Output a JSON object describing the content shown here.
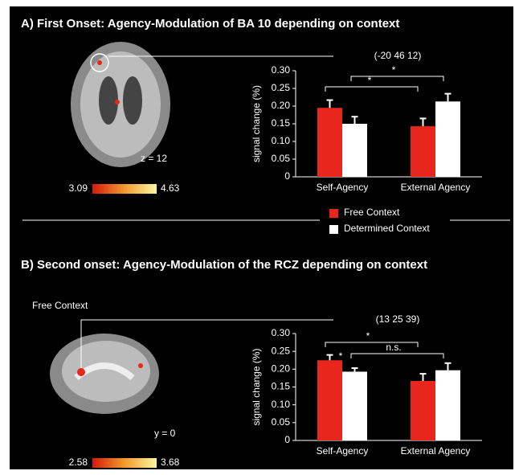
{
  "chart_data": [
    {
      "type": "bar",
      "title": "A)  First Onset: Agency-Modulation of BA 10 depending on context",
      "subtitle": "(-20 46 12)",
      "ylabel": "signal change (%)",
      "categories": [
        "Self-Agency",
        "External Agency"
      ],
      "series": [
        {
          "name": "Free Context",
          "color": "#e8261d",
          "values": [
            0.195,
            0.143
          ],
          "errors": [
            0.022,
            0.022
          ]
        },
        {
          "name": "Determined Context",
          "color": "#ffffff",
          "values": [
            0.15,
            0.213
          ],
          "errors": [
            0.02,
            0.022
          ]
        }
      ],
      "ylim": [
        0,
        0.3
      ],
      "yticks": [
        0,
        0.05,
        {
          "value": 0.1,
          "label": "0.10"
        },
        0.15,
        {
          "value": 0.2,
          "label": "0.20"
        },
        0.25,
        {
          "value": 0.3,
          "label": "0.30"
        }
      ],
      "annotations": [
        "*",
        "*"
      ],
      "image_label": "z = 12",
      "colorbar_min": 3.09,
      "colorbar_max": 4.63
    },
    {
      "type": "bar",
      "title": "B)  Second onset: Agency-Modulation of the RCZ depending on context",
      "subtitle": "(13 25 39)",
      "ylabel": "signal change (%)",
      "categories": [
        "Self-Agency",
        "External Agency"
      ],
      "series": [
        {
          "color": "#e8261d",
          "values": [
            0.225,
            0.167
          ],
          "errors": [
            0.015,
            0.02
          ]
        },
        {
          "color": "#ffffff",
          "values": [
            0.193,
            0.197
          ],
          "errors": [
            0.01,
            0.02
          ]
        }
      ],
      "ylim": [
        0,
        0.3
      ],
      "yticks": [
        0,
        0.05,
        {
          "value": 0.1,
          "label": "0.10"
        },
        0.15,
        {
          "value": 0.2,
          "label": "0.20"
        },
        0.25,
        {
          "value": 0.3,
          "label": "0.30"
        }
      ],
      "annotations": [
        "*",
        "*",
        "n.s."
      ],
      "image_caption": "Free Context",
      "image_label": "y = 0",
      "colorbar_min": 2.58,
      "colorbar_max": 3.68
    }
  ]
}
